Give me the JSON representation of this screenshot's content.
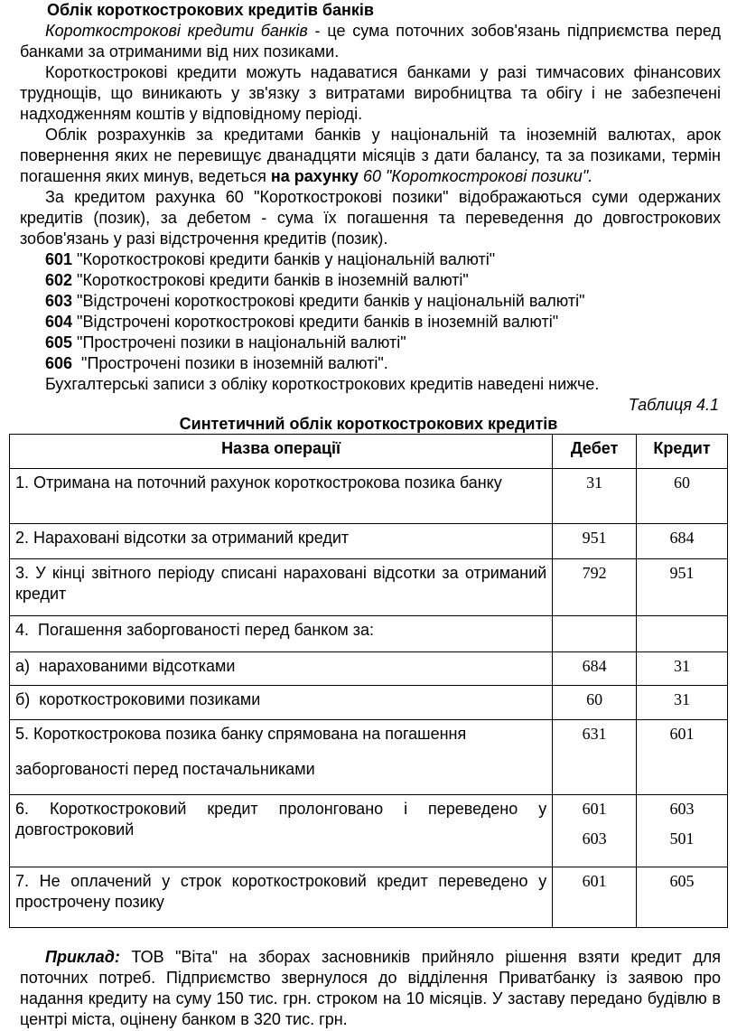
{
  "title": "Облік короткострокових кредитів банків",
  "para1": {
    "term": "Короткострокові кредити банків",
    "text": " - це сума поточних зобов'язань підприємства перед банками за отриманими від них позиками."
  },
  "para2": "Короткострокові кредити можуть надаватися банками у разі тимчасових фінансових труднощів, що виникають у зв'язку з витратами виробництва та обігу і не забезпечені надходженням коштів у відповідному періоді.",
  "para3": {
    "text": "Облік розрахунків за кредитами банків у національній та іноземній валютах, арок повернення яких не перевищує дванадцяти місяців з дати балансу, та за позиками, термін погашення яких минув, ведеться ",
    "bold": "на рахунку",
    "italic": " 60 \"Короткострокові позики\"."
  },
  "para4": "За кредитом рахунка 60 \"Короткострокові позики\" відображаються суми одержаних кредитів (позик), за дебетом - сума їх погашення та переведення до довгострокових зобов'язань у разі відстрочення кредитів (позик).",
  "accounts": [
    {
      "code": "601",
      "name": " \"Короткострокові кредити банків у національній валюті\""
    },
    {
      "code": "602",
      "name": " \"Короткострокові кредити банків в іноземній валюті\""
    },
    {
      "code": "603",
      "name": " \"Відстрочені короткострокові кредити банків у національній валюті\""
    },
    {
      "code": "604",
      "name": " \"Відстрочені короткострокові кредити банків в іноземній валюті\""
    },
    {
      "code": "605",
      "name": " \"Прострочені позики в національній валюті\""
    },
    {
      "code": "606",
      "name": "  \"Прострочені позики в іноземній валюті\"."
    }
  ],
  "para5": "Бухгалтерські записи з обліку короткострокових кредитів наведені нижче.",
  "table_caption": "Таблиця 4.1",
  "table_title": "Синтетичний облік короткострокових кредитів",
  "table": {
    "headers": [
      "Назва операції",
      "Дебет",
      "Кредит"
    ],
    "rows": [
      {
        "name": "1. Отримана на поточний рахунок короткострокова позика банку",
        "debit": "31",
        "credit": "60"
      },
      {
        "name": "2. Нараховані відсотки за отриманий кредит",
        "debit": "951",
        "credit": "684"
      },
      {
        "name": "3. У кінці звітного періоду списані нараховані відсотки за отриманий кредит",
        "debit": "792",
        "credit": "951"
      },
      {
        "name": "4.  Погашення заборгованості перед банком за:",
        "debit": "",
        "credit": ""
      },
      {
        "name": "а)  нарахованими відсотками",
        "debit": "684",
        "credit": "31"
      },
      {
        "name": "б)  короткостроковими позиками",
        "debit": "60",
        "credit": "31"
      },
      {
        "name": "5. Короткострокова позика банку спрямована на погашення",
        "name2": "заборгованості перед постачальниками",
        "debit": "631",
        "credit": "601"
      },
      {
        "name": "6. Короткостроковий кредит пролонговано і переведено у довгостроковий",
        "debit": "601",
        "debit2": "603",
        "credit": "603",
        "credit2": "501"
      },
      {
        "name": "7. Не оплачений у строк короткостроковий кредит переведено у прострочену позику",
        "debit": "601",
        "credit": "605"
      }
    ]
  },
  "example": {
    "label": "Приклад:",
    "text": " ТОВ \"Віта\" на зборах засновників прийняло рішення взяти кредит для поточних потреб. Підприємство звернулося до відділення Приватбанку із заявою про надання кредиту на суму 150 тис. грн. строком на 10 місяців. У заставу передано будівлю в центрі міста, оцінену банком в 320 тис. грн."
  }
}
